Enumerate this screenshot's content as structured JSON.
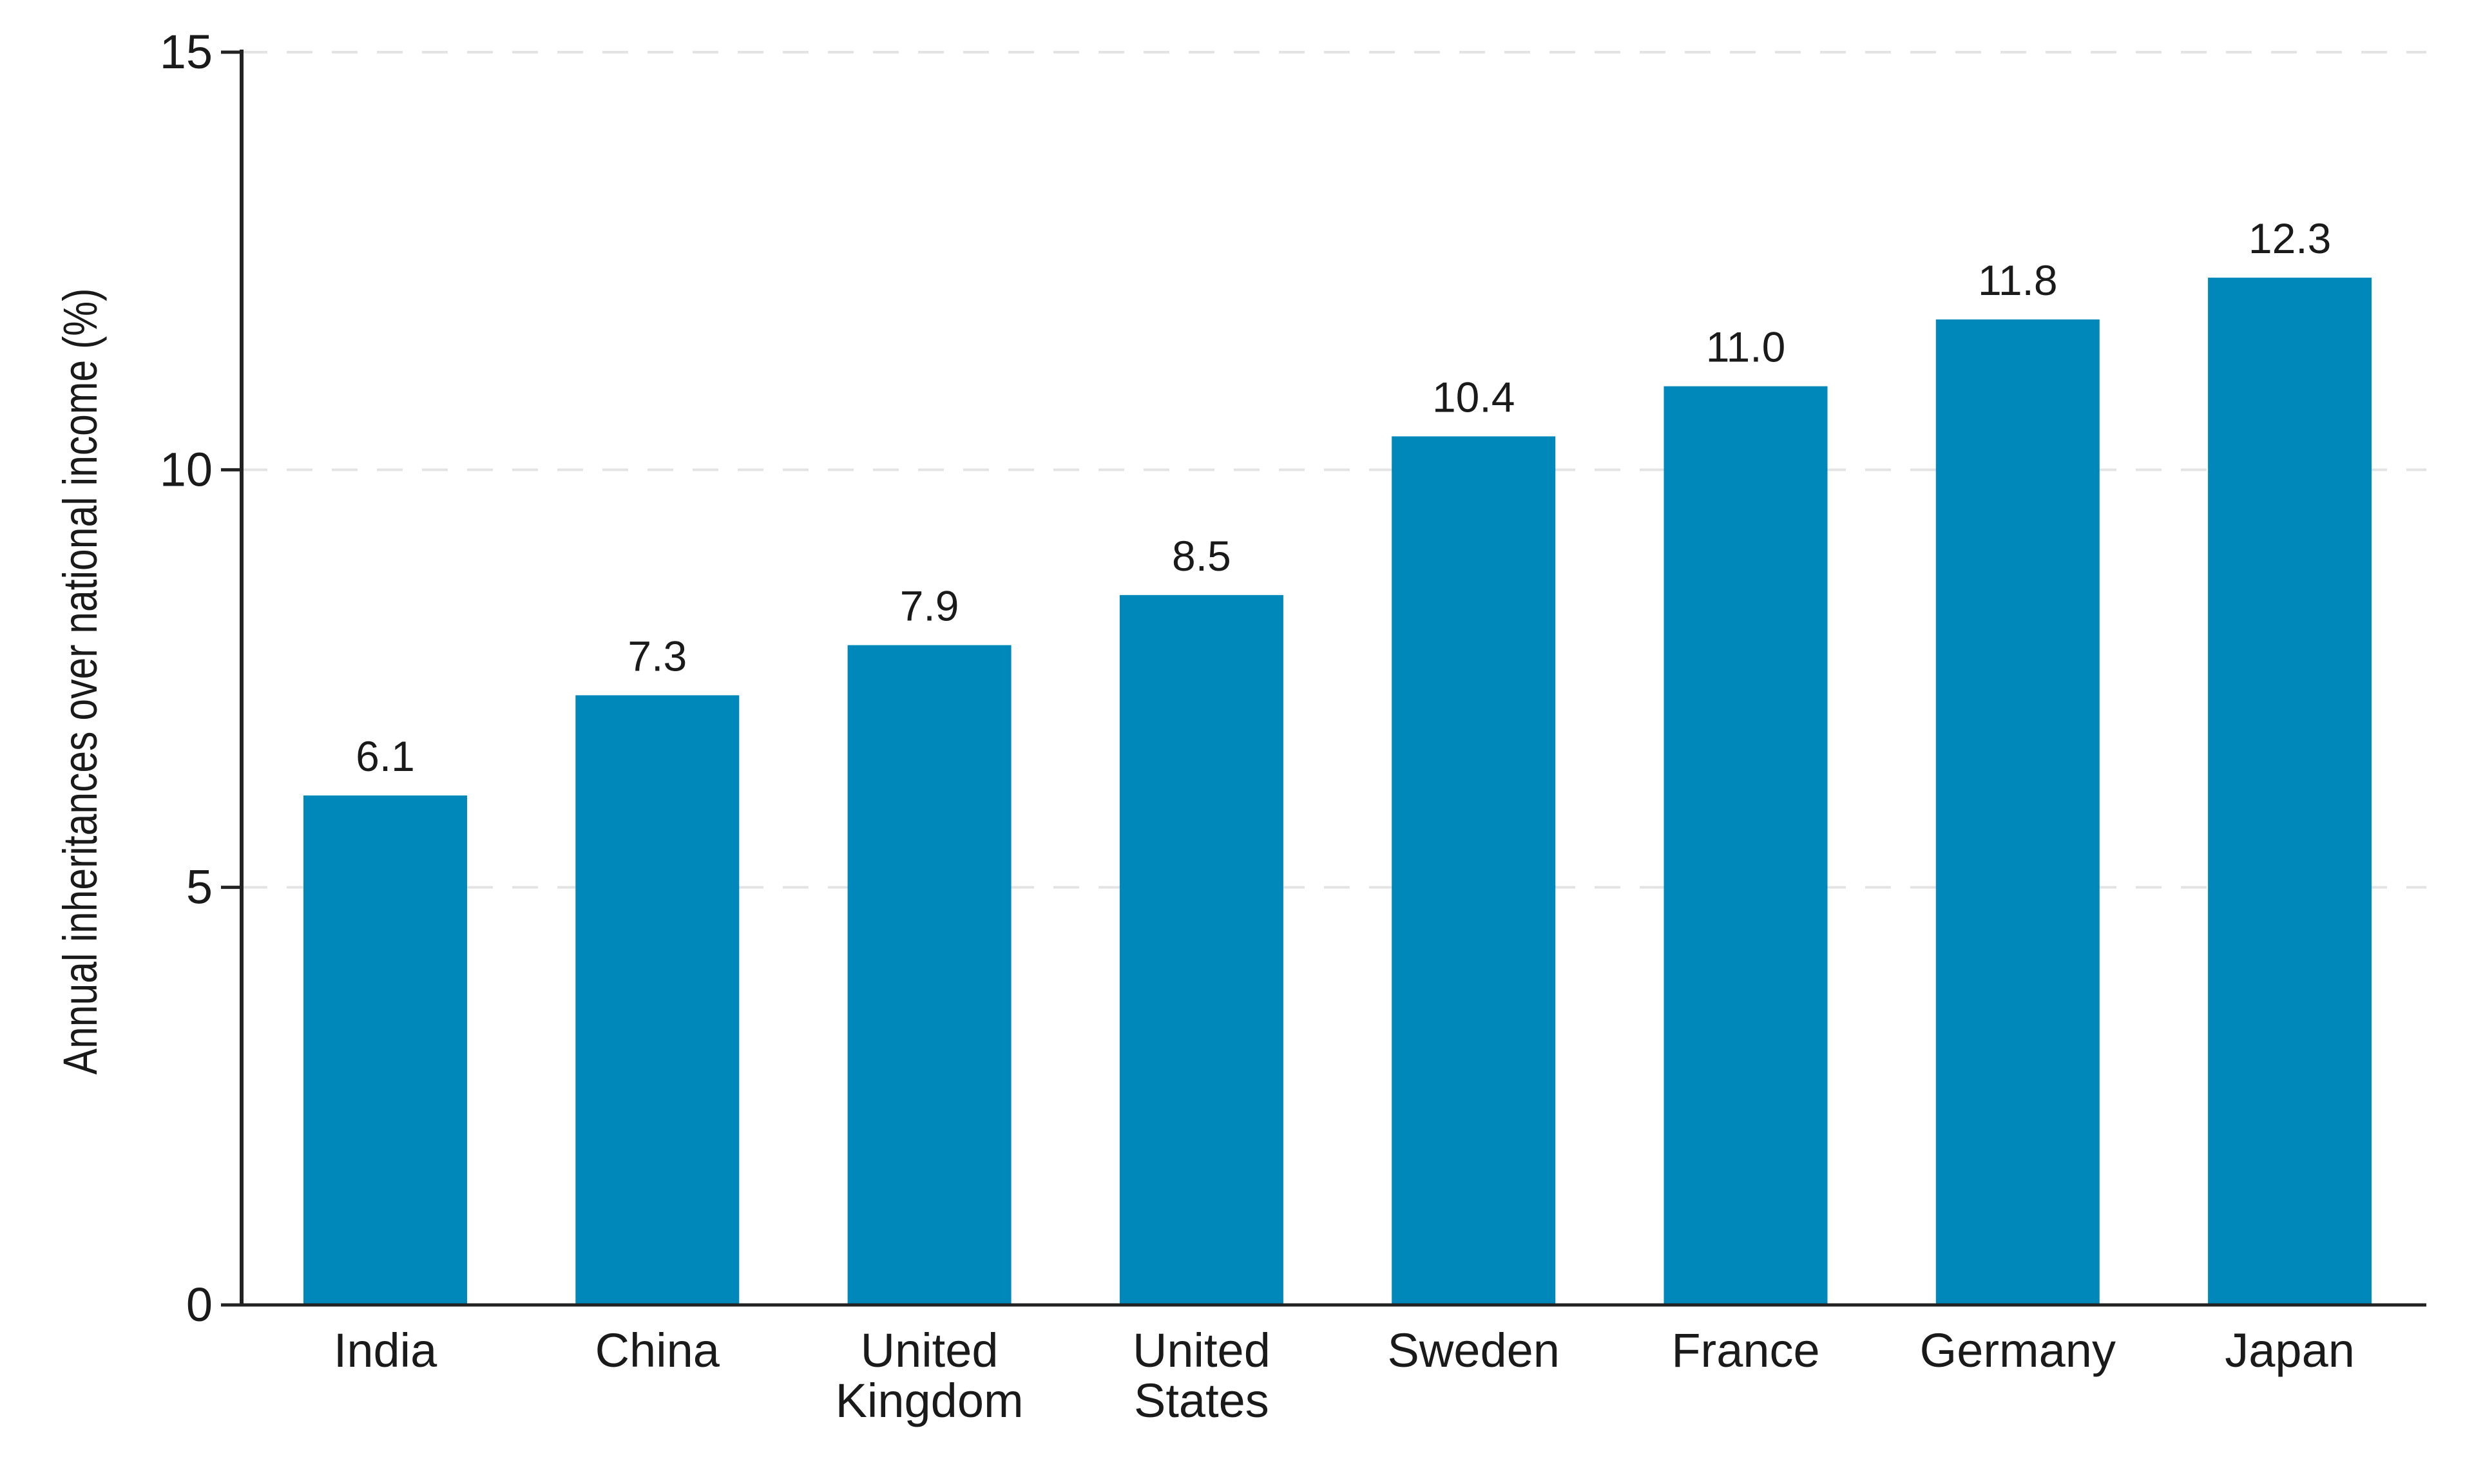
{
  "chart_data": {
    "type": "bar",
    "title": "",
    "xlabel": "",
    "ylabel": "Annual inheritances over national income (%)",
    "categories": [
      [
        "India"
      ],
      [
        "China"
      ],
      [
        "United",
        "Kingdom"
      ],
      [
        "United",
        "States"
      ],
      [
        "Sweden"
      ],
      [
        "France"
      ],
      [
        "Germany"
      ],
      [
        "Japan"
      ]
    ],
    "values": [
      6.1,
      7.3,
      7.9,
      8.5,
      10.4,
      11.0,
      11.8,
      12.3
    ],
    "data_labels": [
      "6.1",
      "7.3",
      "7.9",
      "8.5",
      "10.4",
      "11.0",
      "11.8",
      "12.3"
    ],
    "ylim": [
      0,
      15
    ],
    "yticks": [
      0,
      5,
      10,
      15
    ],
    "grid": "horizontal dashed",
    "legend": "none",
    "bar_color": "#0088BB"
  }
}
